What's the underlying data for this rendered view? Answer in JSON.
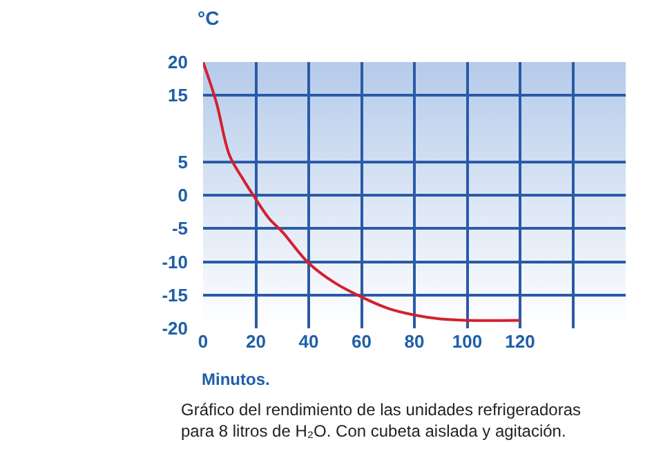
{
  "chart_data": {
    "type": "line",
    "ylabel": "°C",
    "xlabel": "Minutos.",
    "annotations": [
      "Gráfico del rendimiento de las unidades refrigeradoras para 8 litros de H₂O. Con cubeta aislada y agitación."
    ],
    "x": [
      0,
      5,
      10,
      15,
      19,
      25,
      30,
      40,
      50,
      60,
      70,
      80,
      90,
      100,
      120
    ],
    "series": [
      {
        "color": "#d42030",
        "values": [
          20,
          14,
          6,
          2.5,
          0,
          -3.5,
          -5.5,
          -10.2,
          -13.2,
          -15.3,
          -17,
          -18,
          -18.6,
          -18.8,
          -18.8
        ]
      }
    ],
    "xlim": [
      0,
      160
    ],
    "xticks": [
      0,
      20,
      40,
      60,
      80,
      100,
      120,
      {
        "value": 140,
        "label": null
      },
      {
        "value": 160,
        "label": null
      }
    ],
    "ylim": [
      -20,
      20
    ],
    "yticks": [
      -20,
      -15,
      -10,
      -5,
      0,
      5,
      15,
      20
    ],
    "grid": true,
    "marker": "none",
    "line_style": "solid"
  }
}
